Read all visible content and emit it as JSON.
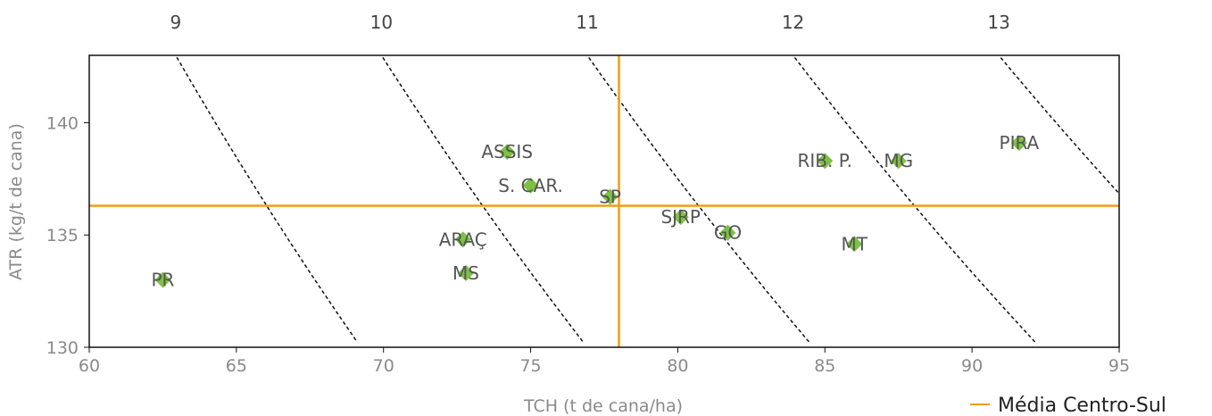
{
  "colors": {
    "marker": "#7dc242",
    "reference": "#f39c12",
    "frame": "#111111",
    "isoline": "#111111",
    "tick_text": "#8a8a8a",
    "point_text": "#555555"
  },
  "chart_data": {
    "type": "scatter",
    "title": "",
    "xlabel": "TCH (t de cana/ha)",
    "ylabel": "ATR (kg/t de cana)",
    "xlim": [
      60,
      95
    ],
    "ylim": [
      130,
      143
    ],
    "x_ticks": [
      "60",
      "65",
      "70",
      "75",
      "80",
      "85",
      "90",
      "95"
    ],
    "y_ticks": [
      "130",
      "135",
      "140"
    ],
    "grid": false,
    "points": [
      {
        "label": "PR",
        "x": 62.5,
        "y": 133.0
      },
      {
        "label": "ASSIS",
        "x": 74.2,
        "y": 138.7
      },
      {
        "label": "S. CAR.",
        "x": 75.0,
        "y": 137.2
      },
      {
        "label": "SP",
        "x": 77.7,
        "y": 136.7
      },
      {
        "label": "ARAÇ",
        "x": 72.7,
        "y": 134.8
      },
      {
        "label": "MS",
        "x": 72.8,
        "y": 133.3
      },
      {
        "label": "SJRP",
        "x": 80.1,
        "y": 135.8
      },
      {
        "label": "GO",
        "x": 81.7,
        "y": 135.1
      },
      {
        "label": "MT",
        "x": 86.0,
        "y": 134.6
      },
      {
        "label": "RIB. P.",
        "x": 85.0,
        "y": 138.3
      },
      {
        "label": "MG",
        "x": 87.5,
        "y": 138.3
      },
      {
        "label": "PIRA",
        "x": 91.6,
        "y": 139.1
      }
    ],
    "reference_lines": {
      "name": "Média Centro-Sul",
      "x": 78.0,
      "y": 136.3
    },
    "isolines": {
      "type": "constant ATR × TCH",
      "labels": [
        "9",
        "10",
        "11",
        "12",
        "13"
      ],
      "values": [
        9,
        10,
        11,
        12,
        13
      ]
    },
    "legend": {
      "position": "bottom-right",
      "entries": [
        "Média Centro-Sul"
      ]
    }
  }
}
